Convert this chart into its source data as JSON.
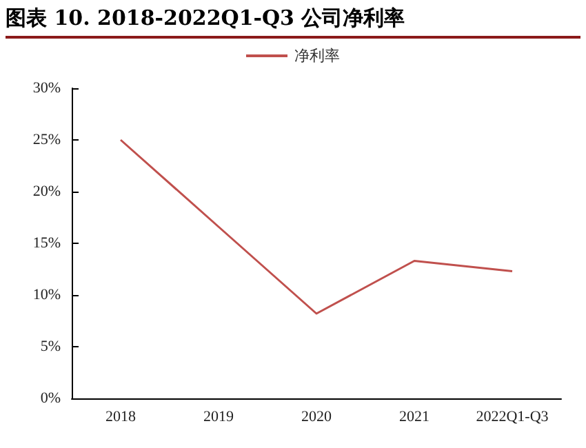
{
  "chart_data": {
    "type": "line",
    "title": "图表 10. 2018-2022Q1-Q3 公司净利率",
    "categories": [
      "2018",
      "2019",
      "2020",
      "2021",
      "2022Q1-Q3"
    ],
    "series": [
      {
        "name": "净利率",
        "color": "#c0504d",
        "values": [
          25.0,
          16.6,
          8.2,
          13.3,
          12.3
        ]
      }
    ],
    "ylim": [
      0,
      30
    ],
    "yticks": [
      {
        "value": 0,
        "label": "0%"
      },
      {
        "value": 5,
        "label": "5%"
      },
      {
        "value": 10,
        "label": "10%"
      },
      {
        "value": 15,
        "label": "15%"
      },
      {
        "value": 20,
        "label": "20%"
      },
      {
        "value": 25,
        "label": "25%"
      },
      {
        "value": 30,
        "label": "30%"
      }
    ],
    "grid": false,
    "legend": "top",
    "marker": "none",
    "line_style": "solid"
  }
}
